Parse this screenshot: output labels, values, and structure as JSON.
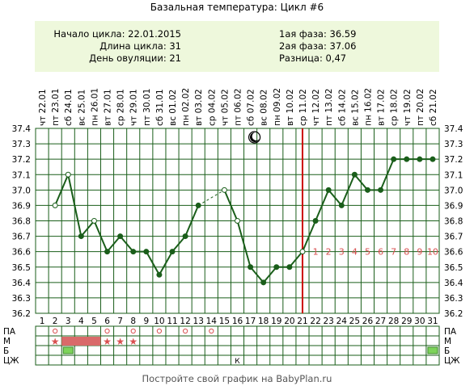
{
  "title": "Базальная температура: Цикл #6",
  "info": {
    "start_label": "Начало цикла:",
    "start_value": "22.01.2015",
    "length_label": "Длина цикла:",
    "length_value": "31",
    "ovulation_label": "День овуляции:",
    "ovulation_value": "21",
    "phase1_label": "1ая фаза:",
    "phase1_value": "36.59",
    "phase2_label": "2ая фаза:",
    "phase2_value": "37.06",
    "diff_label": "Разница:",
    "diff_value": "0,47"
  },
  "colors": {
    "line": "#1a5e1a",
    "grid": "#1a5e1a",
    "ovulation": "#cc0000",
    "info_bg": "#eef8dc",
    "mens_bar": "#d96a6a",
    "phase_numbers": "#d95050",
    "marker_fill": "#dff5c0"
  },
  "chart_data": {
    "type": "line",
    "ylim": [
      36.2,
      37.4
    ],
    "y_ticks": [
      "37.4",
      "37.3",
      "37.2",
      "37.1",
      "37.0",
      "36.9",
      "36.8",
      "36.7",
      "36.6",
      "36.5",
      "36.4",
      "36.3",
      "36.2"
    ],
    "days": [
      1,
      2,
      3,
      4,
      5,
      6,
      7,
      8,
      9,
      10,
      11,
      12,
      13,
      14,
      15,
      16,
      17,
      18,
      19,
      20,
      21,
      22,
      23,
      24,
      25,
      26,
      27,
      28,
      29,
      30,
      31
    ],
    "weekdays": [
      "чт",
      "пт",
      "сб",
      "вс",
      "пн",
      "вт",
      "ср",
      "чт",
      "пт",
      "сб",
      "вс",
      "пн",
      "вт",
      "ср",
      "чт",
      "пт",
      "сб",
      "вс",
      "пн",
      "вт",
      "ср",
      "чт",
      "пт",
      "сб",
      "вс",
      "пн",
      "вт",
      "ср",
      "чт",
      "пт",
      "сб"
    ],
    "dates": [
      "22.01",
      "23.01",
      "24.01",
      "25.01",
      "26.01",
      "27.01",
      "28.01",
      "29.01",
      "30.01",
      "31.01",
      "01.02",
      "02.02",
      "03.02",
      "04.02",
      "05.02",
      "06.02",
      "07.02",
      "08.02",
      "09.02",
      "10.02",
      "11.02",
      "12.02",
      "13.02",
      "14.02",
      "15.02",
      "16.02",
      "17.02",
      "18.02",
      "19.02",
      "20.02",
      "21.02"
    ],
    "values": [
      null,
      36.9,
      37.1,
      36.7,
      36.8,
      36.6,
      36.7,
      36.6,
      36.6,
      36.45,
      36.6,
      36.7,
      36.9,
      null,
      37.0,
      36.8,
      36.5,
      36.4,
      36.5,
      36.5,
      36.6,
      36.8,
      37.0,
      36.9,
      37.1,
      37.0,
      37.0,
      37.2,
      37.2,
      37.2,
      37.2
    ],
    "open_markers": [
      2,
      3,
      5,
      15,
      16,
      21
    ],
    "dashed_from_day": 13,
    "dashed_to_day": 15,
    "ovulation_day": 21,
    "phase2_numbers": [
      "1",
      "2",
      "3",
      "4",
      "5",
      "6",
      "7",
      "8",
      "9",
      "10"
    ],
    "moon_day": 17,
    "grid": true
  },
  "table": {
    "row_labels": [
      "ПА",
      "М",
      "Б",
      "ЦЖ"
    ],
    "pa_days": [
      2,
      6,
      8,
      10,
      12,
      14
    ],
    "mens_bar_days": [
      3,
      4,
      5
    ],
    "mens_star_days": [
      2,
      6,
      7,
      8
    ],
    "b_marker_days": [
      3,
      31
    ],
    "czh_marks": [
      {
        "day": 16,
        "text": "К"
      }
    ]
  },
  "footer": "Постройте свой график на BabyPlan.ru"
}
